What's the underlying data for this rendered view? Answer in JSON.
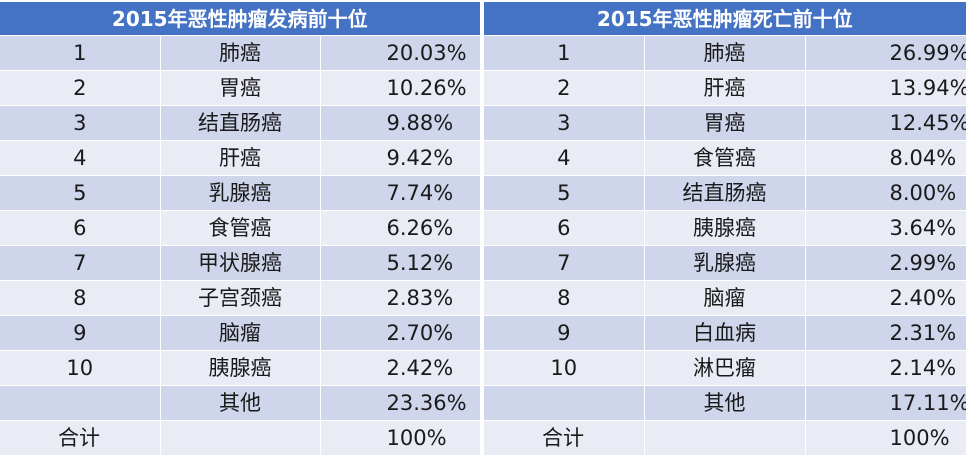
{
  "incidence": {
    "title": "2015年恶性肿瘤发病前十位",
    "rows": [
      {
        "rank": "1",
        "name": "肺癌",
        "pct": "20.03%"
      },
      {
        "rank": "2",
        "name": "胃癌",
        "pct": "10.26%"
      },
      {
        "rank": "3",
        "name": "结直肠癌",
        "pct": "9.88%"
      },
      {
        "rank": "4",
        "name": "肝癌",
        "pct": "9.42%"
      },
      {
        "rank": "5",
        "name": "乳腺癌",
        "pct": "7.74%"
      },
      {
        "rank": "6",
        "name": "食管癌",
        "pct": "6.26%"
      },
      {
        "rank": "7",
        "name": "甲状腺癌",
        "pct": "5.12%"
      },
      {
        "rank": "8",
        "name": "子宫颈癌",
        "pct": "2.83%"
      },
      {
        "rank": "9",
        "name": "脑瘤",
        "pct": "2.70%"
      },
      {
        "rank": "10",
        "name": "胰腺癌",
        "pct": "2.42%"
      }
    ],
    "other": {
      "name": "其他",
      "pct": "23.36%"
    },
    "total": {
      "label": "合计",
      "pct": "100%"
    }
  },
  "mortality": {
    "title": "2015年恶性肿瘤死亡前十位",
    "rows": [
      {
        "rank": "1",
        "name": "肺癌",
        "pct": "26.99%"
      },
      {
        "rank": "2",
        "name": "肝癌",
        "pct": "13.94%"
      },
      {
        "rank": "3",
        "name": "胃癌",
        "pct": "12.45%"
      },
      {
        "rank": "4",
        "name": "食管癌",
        "pct": "8.04%"
      },
      {
        "rank": "5",
        "name": "结直肠癌",
        "pct": "8.00%"
      },
      {
        "rank": "6",
        "name": "胰腺癌",
        "pct": "3.64%"
      },
      {
        "rank": "7",
        "name": "乳腺癌",
        "pct": "2.99%"
      },
      {
        "rank": "8",
        "name": "脑瘤",
        "pct": "2.40%"
      },
      {
        "rank": "9",
        "name": "白血病",
        "pct": "2.31%"
      },
      {
        "rank": "10",
        "name": "淋巴瘤",
        "pct": "2.14%"
      }
    ],
    "other": {
      "name": "其他",
      "pct": "17.11%"
    },
    "total": {
      "label": "合计",
      "pct": "100%"
    }
  },
  "colors": {
    "header": "#4472c4",
    "band": "#cfd5ea",
    "plain": "#e9ebf5"
  }
}
